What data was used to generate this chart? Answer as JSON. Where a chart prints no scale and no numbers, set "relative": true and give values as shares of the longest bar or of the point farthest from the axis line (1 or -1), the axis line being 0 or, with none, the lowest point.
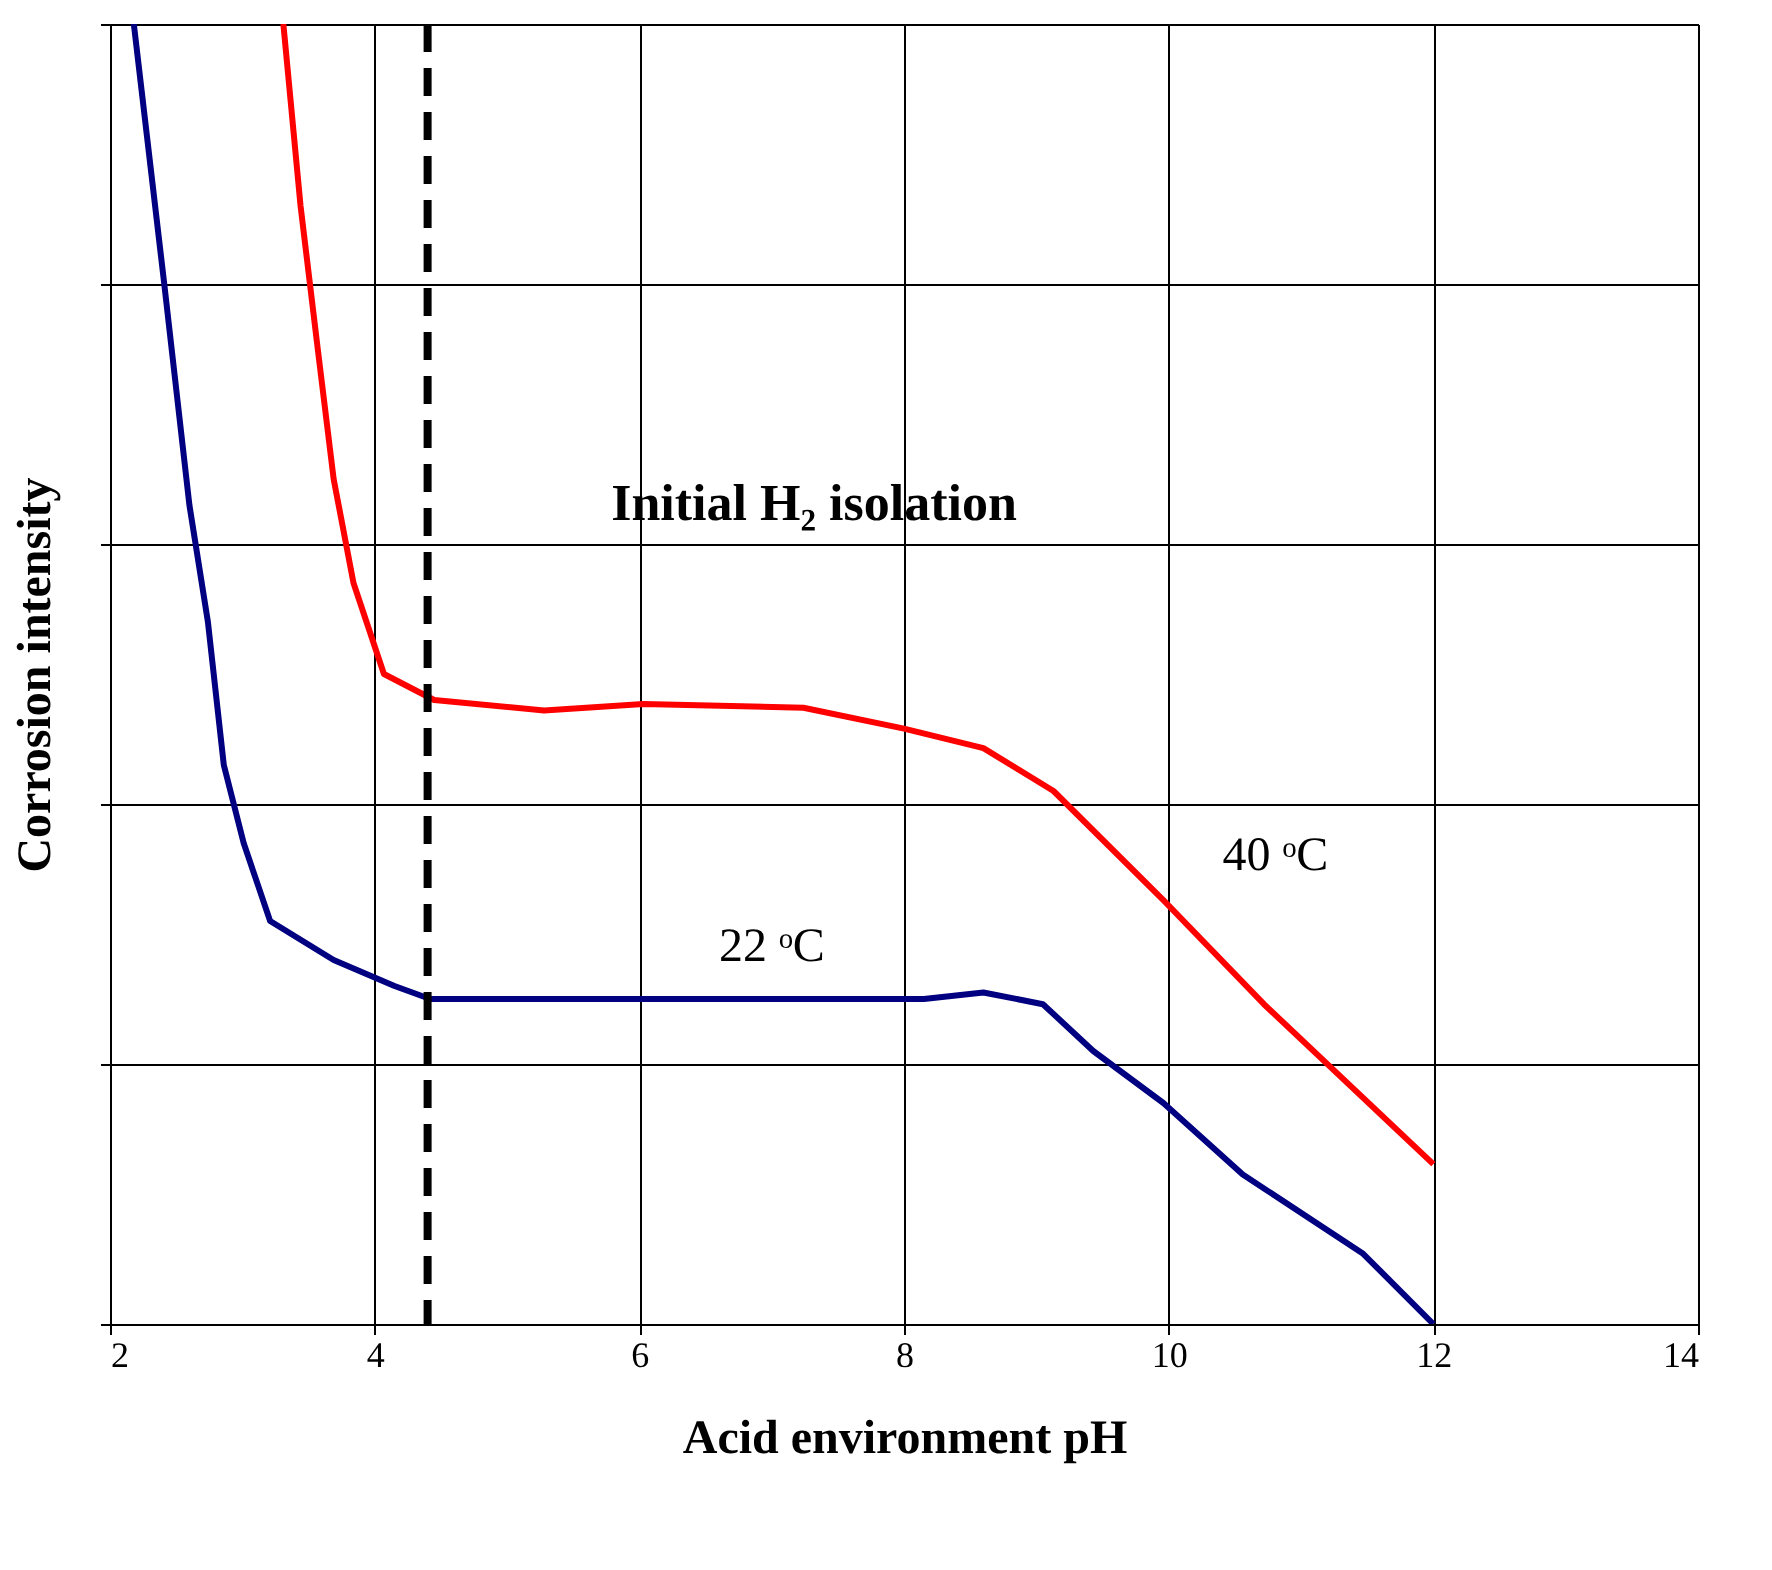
{
  "chart_data": {
    "type": "line",
    "relative": true,
    "xlabel": "Acid environment pH",
    "ylabel": "Corrosion intensity",
    "xlim": [
      2,
      14
    ],
    "xticks": [
      2,
      4,
      6,
      8,
      10,
      12,
      14
    ],
    "grid": true,
    "marker": "none",
    "line_style": "solid",
    "series": [
      {
        "name": "22 ᵒC",
        "color": "#000080",
        "x": [
          2.18,
          2.41,
          2.6,
          2.74,
          2.86,
          3.01,
          3.21,
          3.69,
          4.15,
          4.42,
          8.15,
          8.6,
          9.05,
          9.43,
          9.96,
          10.56,
          11.47,
          12
        ],
        "values": [
          1,
          0.8,
          0.63,
          0.54,
          0.43,
          0.37,
          0.31,
          0.28,
          0.26,
          0.25,
          0.25,
          0.255,
          0.246,
          0.21,
          0.17,
          0.115,
          0.054,
          0
        ]
      },
      {
        "name": "40 ᵒC",
        "color": "#ff0000",
        "x": [
          3.31,
          3.44,
          3.57,
          3.69,
          3.84,
          4.07,
          4.45,
          5.28,
          6.03,
          7.24,
          8.0,
          8.6,
          9.13,
          9.96,
          10.72,
          12
        ],
        "values": [
          1,
          0.86,
          0.75,
          0.65,
          0.57,
          0.5,
          0.48,
          0.472,
          0.477,
          0.474,
          0.458,
          0.443,
          0.41,
          0.326,
          0.246,
          0.123
        ]
      }
    ],
    "ref_lines": [
      {
        "axis": "x",
        "value": 4.4,
        "line_style": "dashed",
        "color": "#000000"
      }
    ],
    "annotations": [
      "Initial H₂ isolation"
    ]
  }
}
